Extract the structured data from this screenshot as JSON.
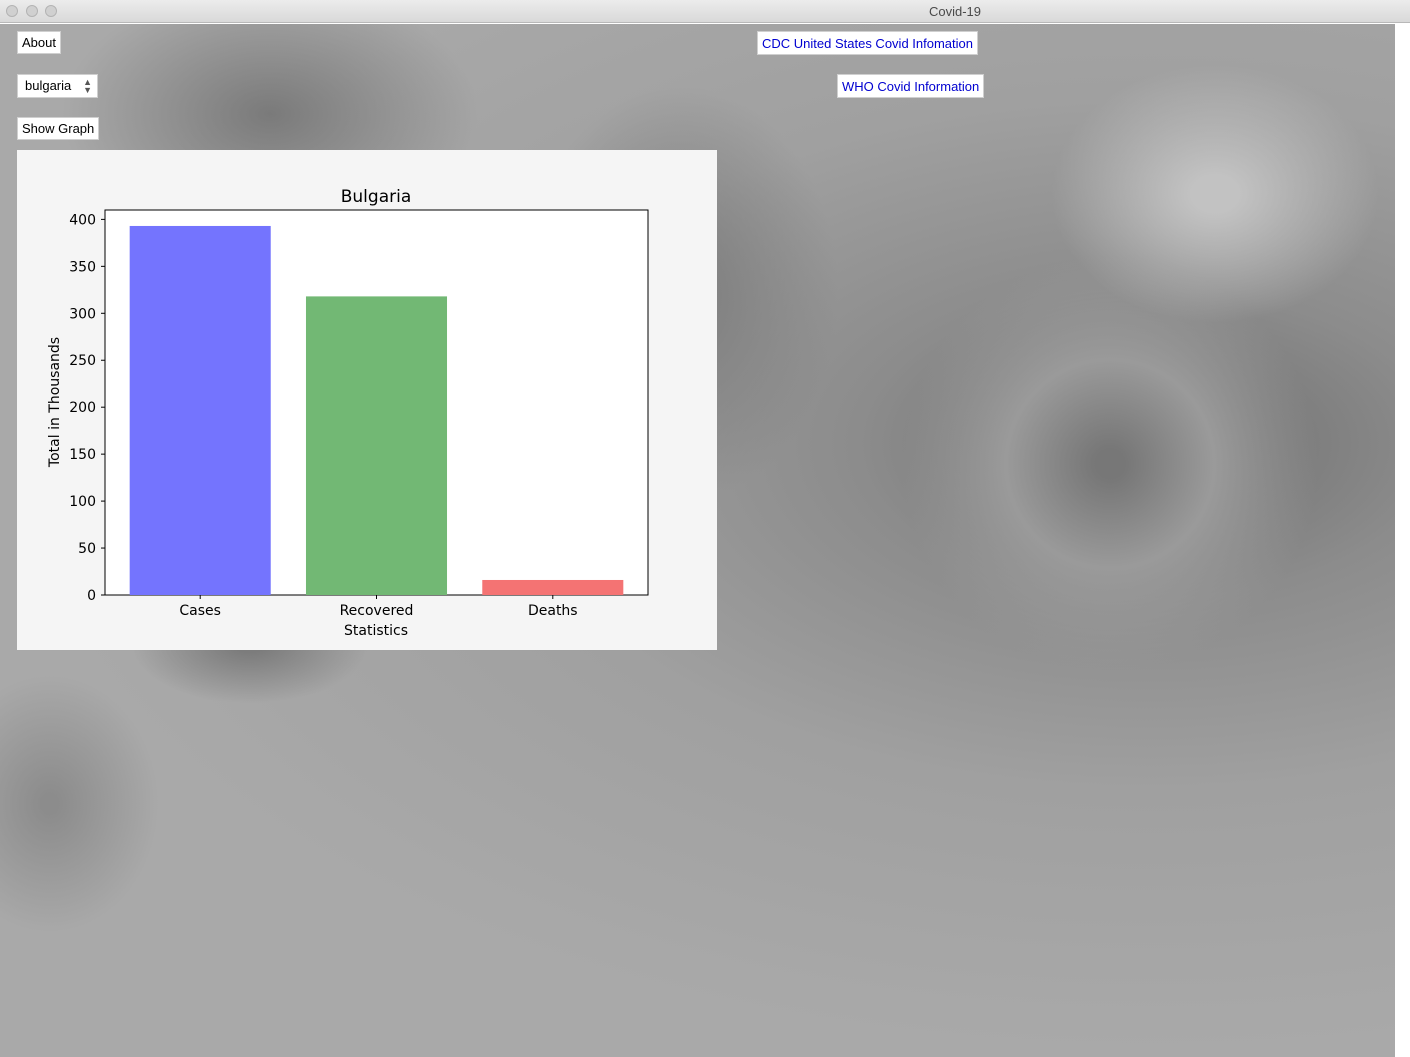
{
  "window": {
    "title": "Covid-19"
  },
  "controls": {
    "about_label": "About",
    "country_selected": "bulgaria",
    "show_graph_label": "Show Graph",
    "cdc_link": "CDC United States Covid Infomation",
    "who_link": "WHO Covid Information"
  },
  "colors": {
    "cases": "#7474fe",
    "recovered": "#72b874",
    "deaths": "#f47373",
    "link": "#0000d0"
  },
  "chart_data": {
    "type": "bar",
    "title": "Bulgaria",
    "xlabel": "Statistics",
    "ylabel": "Total in Thousands",
    "categories": [
      "Cases",
      "Recovered",
      "Deaths"
    ],
    "values": [
      393,
      318,
      16
    ],
    "ylim": [
      0,
      410
    ],
    "yticks": [
      0,
      50,
      100,
      150,
      200,
      250,
      300,
      350,
      400
    ],
    "grid": false
  }
}
